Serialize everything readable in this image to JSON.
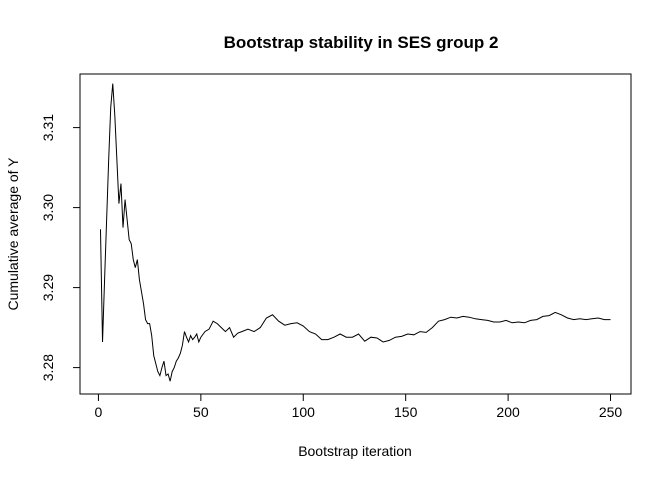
{
  "chart_data": {
    "type": "line",
    "title": "Bootstrap stability in SES group 2",
    "xlabel": "Bootstrap iteration",
    "ylabel": "Cumulative average of Y",
    "xlim": [
      -9,
      260
    ],
    "ylim": [
      3.2767,
      3.3167
    ],
    "x_ticks": [
      0,
      50,
      100,
      150,
      200,
      250
    ],
    "x_tick_labels": [
      "0",
      "50",
      "100",
      "150",
      "200",
      "250"
    ],
    "y_ticks": [
      3.28,
      3.29,
      3.3,
      3.31
    ],
    "y_tick_labels": [
      "3.28",
      "3.29",
      "3.30",
      "3.31"
    ],
    "grid": false,
    "legend": "none",
    "line_color": "#000000",
    "series": [
      {
        "points": [
          [
            1,
            3.2973
          ],
          [
            2,
            3.2832
          ],
          [
            3,
            3.291
          ],
          [
            4,
            3.2985
          ],
          [
            5,
            3.306
          ],
          [
            6,
            3.3125
          ],
          [
            7,
            3.3155
          ],
          [
            8,
            3.3115
          ],
          [
            9,
            3.306
          ],
          [
            10,
            3.3005
          ],
          [
            11,
            3.303
          ],
          [
            12,
            3.2975
          ],
          [
            13,
            3.301
          ],
          [
            14,
            3.2985
          ],
          [
            15,
            3.296
          ],
          [
            16,
            3.2955
          ],
          [
            17,
            3.2935
          ],
          [
            18,
            3.2925
          ],
          [
            19,
            3.2935
          ],
          [
            20,
            3.291
          ],
          [
            21,
            3.2895
          ],
          [
            22,
            3.288
          ],
          [
            23,
            3.286
          ],
          [
            24,
            3.2855
          ],
          [
            25,
            3.2855
          ],
          [
            26,
            3.284
          ],
          [
            27,
            3.2815
          ],
          [
            28,
            3.2805
          ],
          [
            29,
            3.2795
          ],
          [
            30,
            3.279
          ],
          [
            31,
            3.28
          ],
          [
            32,
            3.2808
          ],
          [
            33,
            3.279
          ],
          [
            34,
            3.2792
          ],
          [
            35,
            3.2783
          ],
          [
            36,
            3.2795
          ],
          [
            37,
            3.28
          ],
          [
            38,
            3.2808
          ],
          [
            39,
            3.2812
          ],
          [
            40,
            3.2818
          ],
          [
            41,
            3.2828
          ],
          [
            42,
            3.2845
          ],
          [
            43,
            3.2838
          ],
          [
            44,
            3.2832
          ],
          [
            45,
            3.284
          ],
          [
            46,
            3.2835
          ],
          [
            47,
            3.2838
          ],
          [
            48,
            3.2842
          ],
          [
            49,
            3.2832
          ],
          [
            50,
            3.2838
          ],
          [
            52,
            3.2845
          ],
          [
            54,
            3.2848
          ],
          [
            56,
            3.2858
          ],
          [
            58,
            3.2855
          ],
          [
            60,
            3.285
          ],
          [
            62,
            3.2845
          ],
          [
            64,
            3.285
          ],
          [
            66,
            3.2838
          ],
          [
            68,
            3.2843
          ],
          [
            70,
            3.2845
          ],
          [
            73,
            3.2848
          ],
          [
            76,
            3.2845
          ],
          [
            79,
            3.285
          ],
          [
            82,
            3.2862
          ],
          [
            85,
            3.2866
          ],
          [
            88,
            3.2858
          ],
          [
            91,
            3.2853
          ],
          [
            94,
            3.2855
          ],
          [
            97,
            3.2856
          ],
          [
            100,
            3.2852
          ],
          [
            103,
            3.2845
          ],
          [
            106,
            3.2842
          ],
          [
            109,
            3.2835
          ],
          [
            112,
            3.2835
          ],
          [
            115,
            3.2838
          ],
          [
            118,
            3.2842
          ],
          [
            121,
            3.2838
          ],
          [
            124,
            3.2838
          ],
          [
            127,
            3.2842
          ],
          [
            130,
            3.2833
          ],
          [
            133,
            3.2838
          ],
          [
            136,
            3.2837
          ],
          [
            139,
            3.2832
          ],
          [
            142,
            3.2834
          ],
          [
            145,
            3.2838
          ],
          [
            148,
            3.2839
          ],
          [
            151,
            3.2842
          ],
          [
            154,
            3.2841
          ],
          [
            157,
            3.2845
          ],
          [
            160,
            3.2844
          ],
          [
            163,
            3.285
          ],
          [
            166,
            3.2858
          ],
          [
            169,
            3.286
          ],
          [
            172,
            3.2863
          ],
          [
            175,
            3.2862
          ],
          [
            178,
            3.2864
          ],
          [
            181,
            3.2863
          ],
          [
            184,
            3.2861
          ],
          [
            187,
            3.286
          ],
          [
            190,
            3.2859
          ],
          [
            193,
            3.2857
          ],
          [
            196,
            3.2857
          ],
          [
            199,
            3.2859
          ],
          [
            202,
            3.2856
          ],
          [
            205,
            3.2857
          ],
          [
            208,
            3.2856
          ],
          [
            211,
            3.2859
          ],
          [
            214,
            3.286
          ],
          [
            217,
            3.2864
          ],
          [
            220,
            3.2865
          ],
          [
            223,
            3.2869
          ],
          [
            226,
            3.2866
          ],
          [
            229,
            3.2862
          ],
          [
            232,
            3.286
          ],
          [
            235,
            3.2861
          ],
          [
            238,
            3.286
          ],
          [
            241,
            3.2861
          ],
          [
            244,
            3.2862
          ],
          [
            247,
            3.286
          ],
          [
            250,
            3.286
          ]
        ]
      }
    ]
  }
}
